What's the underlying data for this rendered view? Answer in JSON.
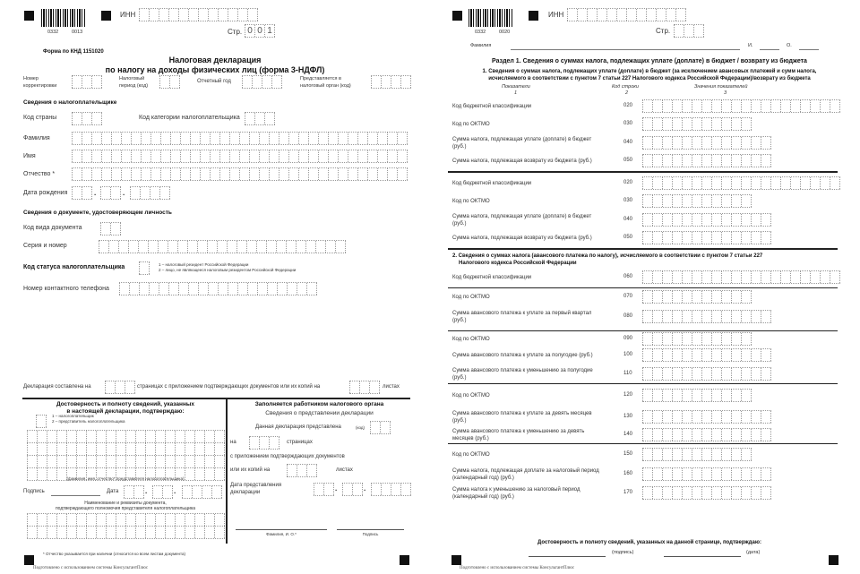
{
  "page1": {
    "barcode_numbers": [
      "0332",
      "0013"
    ],
    "inn_label": "ИНН",
    "page_label": "Стр.",
    "page_digits": [
      "0",
      "0",
      "1"
    ],
    "form_code": "Форма по КНД 1151020",
    "title_line1": "Налоговая декларация",
    "title_line2": "по налогу на доходы физических лиц (форма 3-НДФЛ)",
    "correction_number": [
      "Номер",
      "корректировки"
    ],
    "tax_period": [
      "Налоговый",
      "период (код)"
    ],
    "report_year": "Отчетный год",
    "tax_authority": [
      "Представляется в",
      "налоговый орган (код)"
    ],
    "taxpayer_section": "Сведения о налогоплательщике",
    "country_code": "Код страны",
    "category_code": "Код категории налогоплательщика",
    "surname": "Фамилия",
    "name": "Имя",
    "patronymic": "Отчество *",
    "birth_date": "Дата рождения",
    "id_section": "Сведения о документе, удостоверяющем личность",
    "doc_type_code": "Код вида документа",
    "series_number": "Серия и номер",
    "status_code": "Код статуса налогоплательщика",
    "status_options": [
      "1 – налоговый резидент Российской Федерации",
      "2 – лицо, не являющееся налоговым резидентом Российской Федерации"
    ],
    "phone": "Номер контактного телефона",
    "pages_text": [
      "Декларация составлена на",
      "страницах с приложением подтверждающих документов или их копий на",
      "листах"
    ],
    "confirm": {
      "heading": [
        "Достоверность и полноту сведений, указанных",
        "в настоящей декларации, подтверждаю:"
      ],
      "options": [
        "1 – налогоплательщик",
        "2 – представитель налогоплательщика"
      ],
      "fio_caption": "(фамилия, имя, отчество* представителя налогоплательщика)",
      "signature": "Подпись",
      "date": "Дата",
      "doc_heading": [
        "Наименование и реквизиты документа,",
        "подтверждающего полномочия представителя налогоплательщика"
      ]
    },
    "officer": {
      "heading": "Заполняется работником налогового органа",
      "subheading": "Сведения о представлении декларации",
      "submitted": "Данная декларация представлена",
      "code": "(код)",
      "on": "на",
      "pages": "страницах",
      "with_docs": "с приложением подтверждающих документов",
      "or_copies": "или их копий на",
      "sheets": "листах",
      "date": [
        "Дата представления",
        "декларации"
      ],
      "fio": "Фамилия, И. О.*",
      "signature": "Подпись"
    },
    "footnote": "* Отчество указывается при наличии (относится ко всем листам документа)",
    "prepared": "Подготовлено с использованием системы КонсультантПлюс"
  },
  "page2": {
    "barcode_numbers": [
      "0332",
      "0020"
    ],
    "inn_label": "ИНН",
    "page_label": "Стр.",
    "surname": "Фамилия",
    "initial_i": "И.",
    "initial_o": "О.",
    "section_title": "Раздел 1. Сведения о суммах налога, подлежащих уплате (доплате) в бюджет / возврату из бюджета",
    "sub1": [
      "1. Сведения о суммах налога, подлежащих уплате (доплате) в бюджет (за исключением авансовых платежей и сумм налога,",
      "исчисляемого в соответствии с пунктом 7 статьи 227 Налогового кодекса Российской Федерации)/возврату из бюджета"
    ],
    "columns": [
      {
        "label": "Показатели",
        "num": "1"
      },
      {
        "label": "Код строки",
        "num": "2"
      },
      {
        "label": "Значения показателей",
        "num": "3"
      }
    ],
    "rows1": [
      {
        "label": [
          "Код бюджетной классификации"
        ],
        "code": "020"
      },
      {
        "label": [
          "Код по ОКТМО"
        ],
        "code": "030"
      },
      {
        "label": [
          "Сумма налога, подлежащая уплате (доплате) в бюджет",
          "(руб.)"
        ],
        "code": "040"
      },
      {
        "label": [
          "Сумма налога, подлежащая возврату из бюджета (руб.)"
        ],
        "code": "050"
      },
      {
        "label": [
          "Код бюджетной классификации"
        ],
        "code": "020"
      },
      {
        "label": [
          "Код по ОКТМО"
        ],
        "code": "030"
      },
      {
        "label": [
          "Сумма налога, подлежащая уплате (доплате) в бюджет",
          "(руб.)"
        ],
        "code": "040"
      },
      {
        "label": [
          "Сумма налога, подлежащая возврату из бюджета (руб.)"
        ],
        "code": "050"
      }
    ],
    "sub2": [
      "2. Сведения о суммах налога (авансового платежа по налогу), исчисляемого в соответствии с пунктом 7 статьи 227",
      "Налогового кодекса Российской Федерации"
    ],
    "rows2": [
      {
        "label": [
          "Код бюджетной классификации"
        ],
        "code": "060"
      },
      {
        "label": [
          "Код по ОКТМО"
        ],
        "code": "070"
      },
      {
        "label": [
          "Сумма авансового платежа к уплате за первый квартал",
          "(руб.)"
        ],
        "code": "080"
      },
      {
        "label": [
          "Код по ОКТМО"
        ],
        "code": "090"
      },
      {
        "label": [
          "Сумма авансового платежа к уплате за полугодие (руб.)"
        ],
        "code": "100"
      },
      {
        "label": [
          "Сумма авансового платежа к уменьшению за полугодие",
          "(руб.)"
        ],
        "code": "110"
      },
      {
        "label": [
          "Код по ОКТМО"
        ],
        "code": "120"
      },
      {
        "label": [
          "Сумма авансового платежа к уплате за девять месяцев",
          "(руб.)"
        ],
        "code": "130"
      },
      {
        "label": [
          "Сумма авансового платежа к уменьшению за девять",
          "месяцев (руб.)"
        ],
        "code": "140"
      },
      {
        "label": [
          "Код по ОКТМО"
        ],
        "code": "150"
      },
      {
        "label": [
          "Сумма налога, подлежащая доплате за налоговый период",
          "(календарный год) (руб.)"
        ],
        "code": "160"
      },
      {
        "label": [
          "Сумма налога к уменьшению за налоговый период",
          "(календарный год) (руб.)"
        ],
        "code": "170"
      }
    ],
    "confirm": "Достоверность и полноту сведений, указанных на данной странице, подтверждаю:",
    "signature": "(подпись)",
    "date": "(дата)",
    "prepared": "Подготовлено с использованием системы КонсультантПлюс"
  }
}
